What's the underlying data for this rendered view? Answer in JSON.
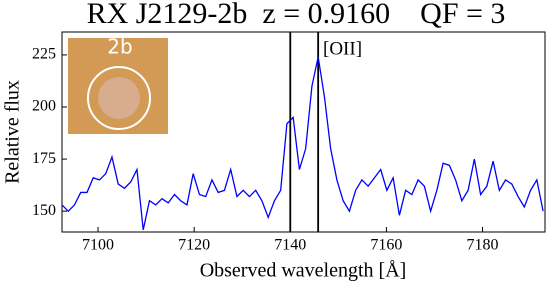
{
  "chart_data": {
    "type": "line",
    "title": "RX J2129-2b  z = 0.9160    QF = 3",
    "xlabel": "Observed wavelength  [Å]",
    "ylabel": "Relative flux",
    "annotation": "[OII]",
    "inset_label": "2b",
    "x": [
      7092.5,
      7093.8,
      7095.1,
      7096.4,
      7097.7,
      7099.0,
      7100.3,
      7101.6,
      7102.9,
      7104.2,
      7105.5,
      7106.8,
      7108.1,
      7109.4,
      7110.7,
      7112.0,
      7113.3,
      7114.6,
      7115.9,
      7117.2,
      7118.5,
      7119.8,
      7121.1,
      7122.4,
      7123.7,
      7125.0,
      7126.3,
      7127.6,
      7128.9,
      7130.2,
      7131.5,
      7132.8,
      7134.1,
      7135.4,
      7136.7,
      7138.0,
      7139.3,
      7140.6,
      7141.9,
      7143.2,
      7144.5,
      7145.8,
      7147.1,
      7148.4,
      7149.7,
      7151.0,
      7152.3,
      7153.6,
      7154.9,
      7156.2,
      7157.5,
      7158.8,
      7160.1,
      7161.4,
      7162.7,
      7164.0,
      7165.3,
      7166.6,
      7167.9,
      7169.2,
      7170.5,
      7171.8,
      7173.1,
      7174.4,
      7175.7,
      7177.0,
      7178.3,
      7179.6,
      7180.9,
      7182.2,
      7183.5,
      7184.8,
      7186.1,
      7187.4,
      7188.7,
      7190.0,
      7191.3,
      7192.6
    ],
    "series": [
      {
        "color": "#0000ff",
        "values": [
          153,
          150,
          153,
          159,
          159,
          166,
          165,
          168,
          176,
          163,
          161,
          164,
          170,
          141,
          155,
          153,
          156,
          154,
          158,
          155,
          153,
          168,
          158,
          157,
          165,
          159,
          160,
          170,
          157,
          160,
          157,
          160,
          155,
          147,
          155,
          160,
          192,
          195,
          170,
          180,
          210,
          224,
          205,
          180,
          165,
          155,
          150,
          160,
          165,
          162,
          166,
          170,
          160,
          166,
          148,
          160,
          158,
          165,
          162,
          150,
          160,
          173,
          172,
          165,
          155,
          160,
          175,
          158,
          162,
          174,
          160,
          165,
          163,
          157,
          152,
          160,
          165,
          150
        ]
      }
    ],
    "vlines": [
      7140,
      7145.8
    ],
    "xlim": [
      7092.5,
      7193
    ],
    "ylim": [
      140,
      236
    ],
    "xticks": [
      7100,
      7120,
      7140,
      7160,
      7180
    ],
    "yticks": [
      150,
      175,
      200,
      225
    ]
  }
}
